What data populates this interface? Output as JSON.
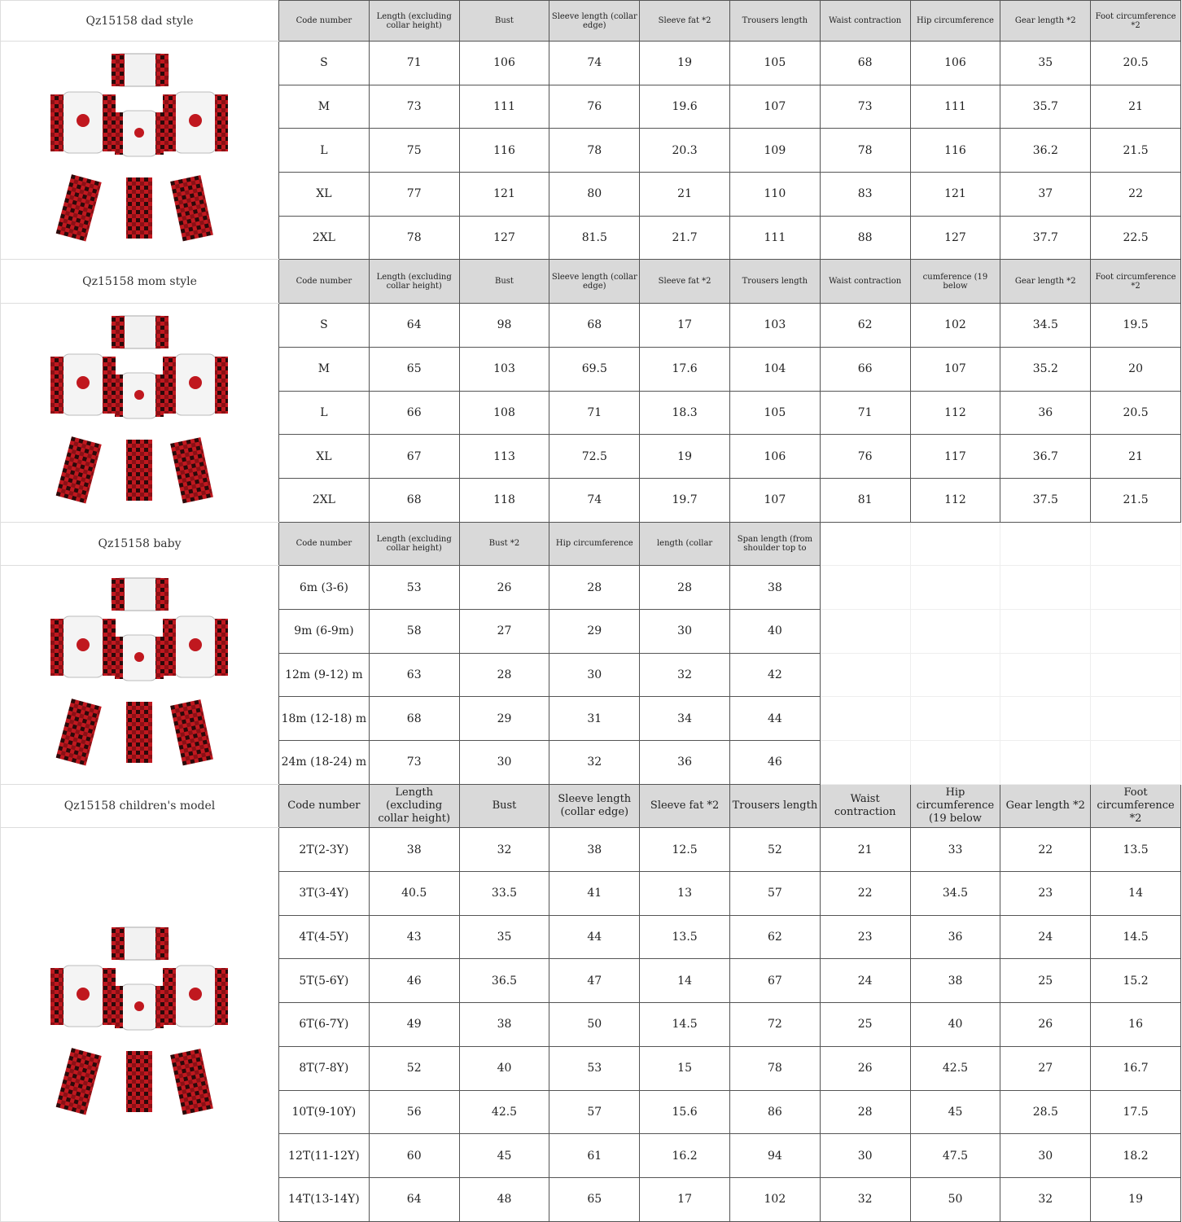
{
  "colors": {
    "header_bg": "#d9d9d9",
    "plaid_red": "#c0181f",
    "plaid_dark": "#2a0a0a"
  },
  "sections": [
    {
      "title": "Qz15158 dad style",
      "headers": [
        "Code number",
        "Length (excluding collar height)",
        "Bust",
        "Sleeve length (collar edge)",
        "Sleeve fat *2",
        "Trousers length",
        "Waist contraction",
        "Hip circumference",
        "Gear length *2",
        "Foot circumference *2"
      ],
      "rows": [
        [
          "S",
          "71",
          "106",
          "74",
          "19",
          "105",
          "68",
          "106",
          "35",
          "20.5"
        ],
        [
          "M",
          "73",
          "111",
          "76",
          "19.6",
          "107",
          "73",
          "111",
          "35.7",
          "21"
        ],
        [
          "L",
          "75",
          "116",
          "78",
          "20.3",
          "109",
          "78",
          "116",
          "36.2",
          "21.5"
        ],
        [
          "XL",
          "77",
          "121",
          "80",
          "21",
          "110",
          "83",
          "121",
          "37",
          "22"
        ],
        [
          "2XL",
          "78",
          "127",
          "81.5",
          "21.7",
          "111",
          "88",
          "127",
          "37.7",
          "22.5"
        ]
      ]
    },
    {
      "title": "Qz15158 mom style",
      "headers": [
        "Code number",
        "Length (excluding collar height)",
        "Bust",
        "Sleeve length (collar edge)",
        "Sleeve fat *2",
        "Trousers length",
        "Waist contraction",
        "cumference (19 below",
        "Gear length *2",
        "Foot circumference *2"
      ],
      "rows": [
        [
          "S",
          "64",
          "98",
          "68",
          "17",
          "103",
          "62",
          "102",
          "34.5",
          "19.5"
        ],
        [
          "M",
          "65",
          "103",
          "69.5",
          "17.6",
          "104",
          "66",
          "107",
          "35.2",
          "20"
        ],
        [
          "L",
          "66",
          "108",
          "71",
          "18.3",
          "105",
          "71",
          "112",
          "36",
          "20.5"
        ],
        [
          "XL",
          "67",
          "113",
          "72.5",
          "19",
          "106",
          "76",
          "117",
          "36.7",
          "21"
        ],
        [
          "2XL",
          "68",
          "118",
          "74",
          "19.7",
          "107",
          "81",
          "112",
          "37.5",
          "21.5"
        ]
      ]
    },
    {
      "title": "Qz15158 baby",
      "headers": [
        "Code number",
        "Length (excluding collar height)",
        "Bust *2",
        "Hip circumference",
        "length (collar",
        "Span length (from shoulder top to"
      ],
      "rows": [
        [
          "6m (3-6)",
          "53",
          "26",
          "28",
          "28",
          "38"
        ],
        [
          "9m (6-9m)",
          "58",
          "27",
          "29",
          "30",
          "40"
        ],
        [
          "12m (9-12) m",
          "63",
          "28",
          "30",
          "32",
          "42"
        ],
        [
          "18m (12-18) m",
          "68",
          "29",
          "31",
          "34",
          "44"
        ],
        [
          "24m (18-24) m",
          "73",
          "30",
          "32",
          "36",
          "46"
        ]
      ]
    },
    {
      "title": "Qz15158 children's model",
      "headers": [
        "Code number",
        "Length (excluding collar height)",
        "Bust",
        "Sleeve length (collar edge)",
        "Sleeve fat *2",
        "Trousers length",
        "Waist contraction",
        "Hip circumference (19 below",
        "Gear length *2",
        "Foot circumference *2"
      ],
      "rows": [
        [
          "2T(2-3Y)",
          "38",
          "32",
          "38",
          "12.5",
          "52",
          "21",
          "33",
          "22",
          "13.5"
        ],
        [
          "3T(3-4Y)",
          "40.5",
          "33.5",
          "41",
          "13",
          "57",
          "22",
          "34.5",
          "23",
          "14"
        ],
        [
          "4T(4-5Y)",
          "43",
          "35",
          "44",
          "13.5",
          "62",
          "23",
          "36",
          "24",
          "14.5"
        ],
        [
          "5T(5-6Y)",
          "46",
          "36.5",
          "47",
          "14",
          "67",
          "24",
          "38",
          "25",
          "15.2"
        ],
        [
          "6T(6-7Y)",
          "49",
          "38",
          "50",
          "14.5",
          "72",
          "25",
          "40",
          "26",
          "16"
        ],
        [
          "8T(7-8Y)",
          "52",
          "40",
          "53",
          "15",
          "78",
          "26",
          "42.5",
          "27",
          "16.7"
        ],
        [
          "10T(9-10Y)",
          "56",
          "42.5",
          "57",
          "15.6",
          "86",
          "28",
          "45",
          "28.5",
          "17.5"
        ],
        [
          "12T(11-12Y)",
          "60",
          "45",
          "61",
          "16.2",
          "94",
          "30",
          "47.5",
          "30",
          "18.2"
        ],
        [
          "14T(13-14Y)",
          "64",
          "48",
          "65",
          "17",
          "102",
          "32",
          "50",
          "32",
          "19"
        ]
      ]
    }
  ]
}
